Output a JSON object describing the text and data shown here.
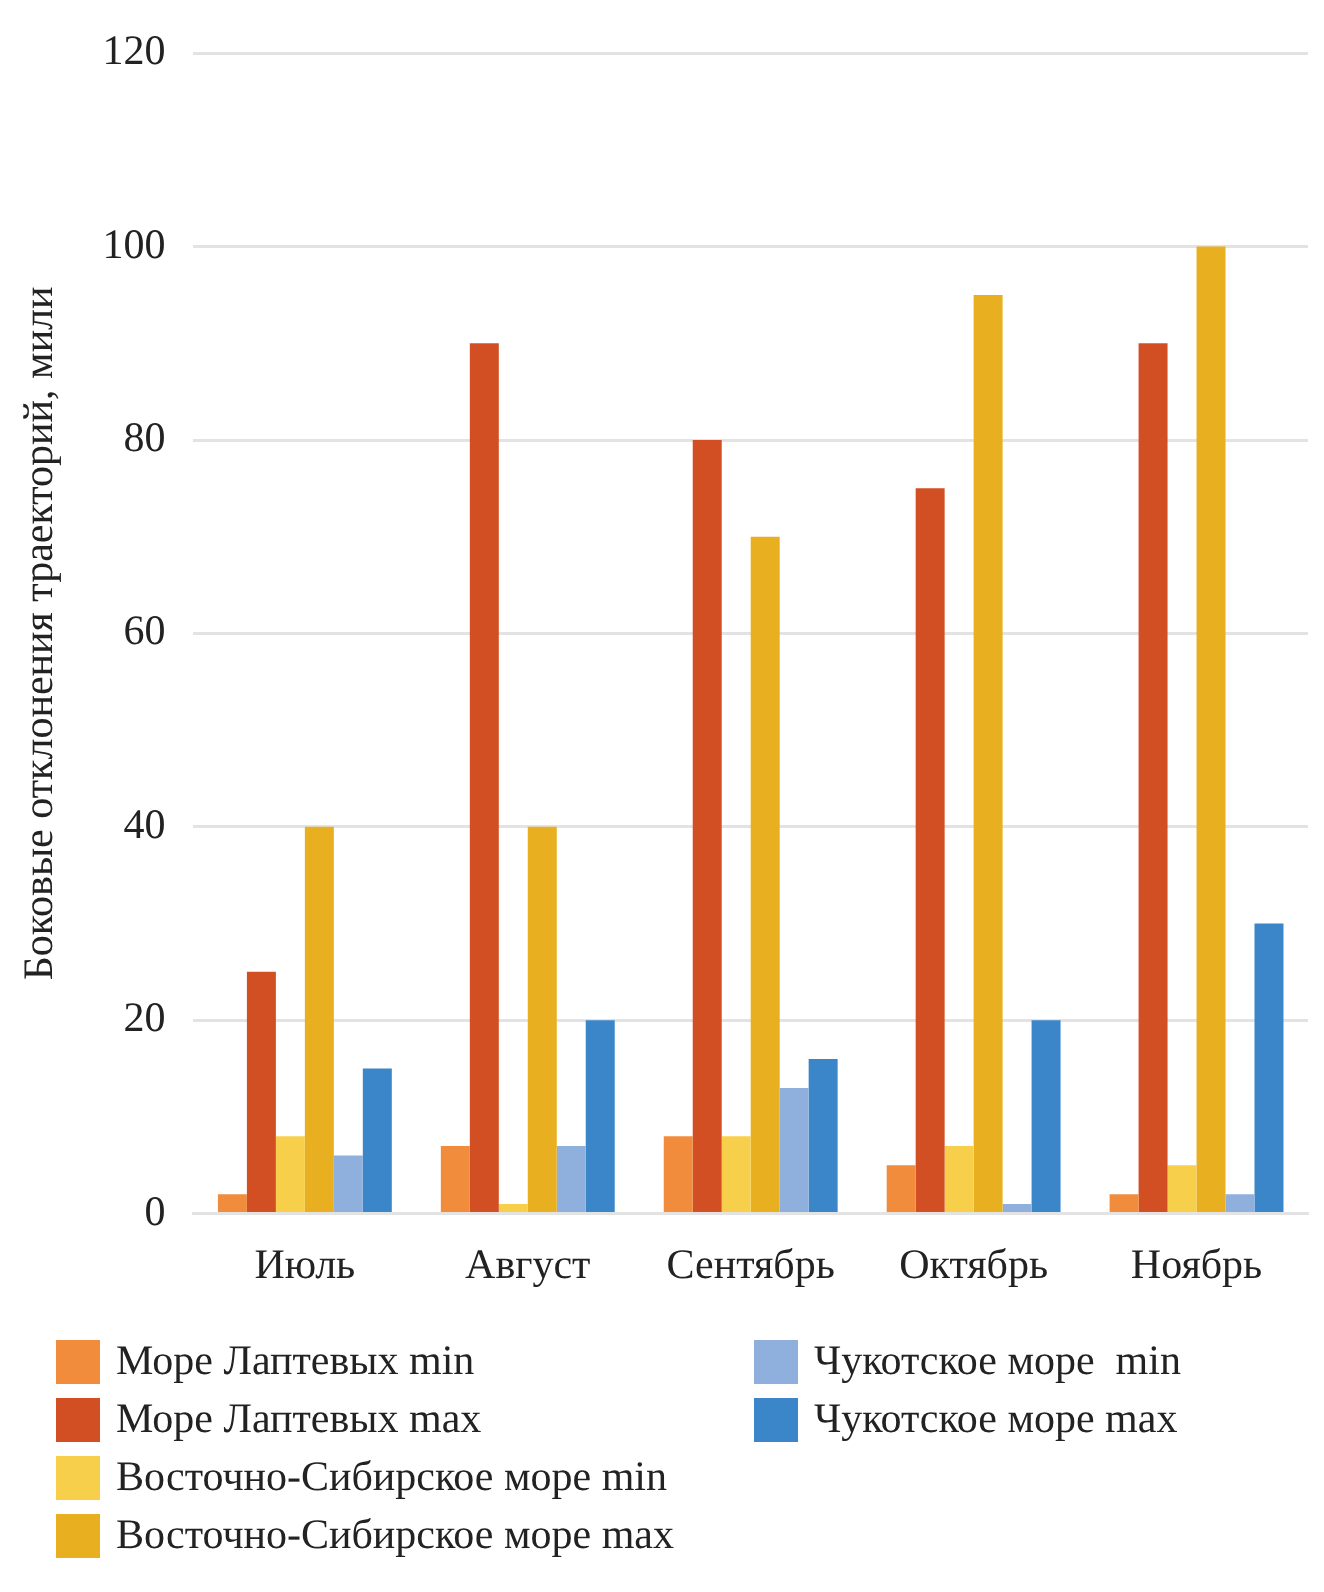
{
  "chart_data": {
    "type": "bar",
    "ylabel": "Боковые отклонения траекторий, мили",
    "categories": [
      "Июль",
      "Август",
      "Сентябрь",
      "Октябрь",
      "Ноябрь"
    ],
    "series": [
      {
        "name": "Море Лаптевых min",
        "color": "#f08c3c",
        "values": [
          2,
          7,
          8,
          5,
          2
        ]
      },
      {
        "name": "Море Лаптевых max",
        "color": "#d24f24",
        "values": [
          25,
          90,
          80,
          75,
          90
        ]
      },
      {
        "name": "Восточно-Сибирское море min",
        "color": "#f7cf4a",
        "values": [
          8,
          1,
          8,
          7,
          5
        ]
      },
      {
        "name": "Восточно-Сибирское море max",
        "color": "#e8b020",
        "values": [
          40,
          40,
          70,
          95,
          100
        ]
      },
      {
        "name": "Чукотское море  min",
        "color": "#8fb0dc",
        "values": [
          6,
          7,
          13,
          1,
          2
        ]
      },
      {
        "name": "Чукотское море max",
        "color": "#3a86c8",
        "values": [
          15,
          20,
          16,
          20,
          30
        ]
      }
    ],
    "ylim": [
      0,
      120
    ],
    "yticks": [
      0,
      20,
      40,
      60,
      80,
      100,
      120
    ],
    "grid": "y",
    "legend": "bottom"
  }
}
